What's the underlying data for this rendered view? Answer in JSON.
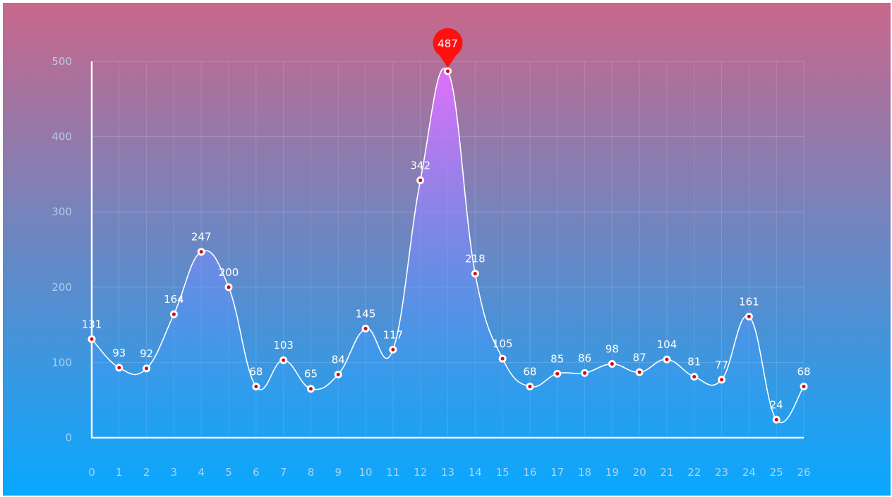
{
  "chart_data": {
    "type": "line",
    "x": [
      "0",
      "1",
      "2",
      "3",
      "4",
      "5",
      "6",
      "7",
      "8",
      "9",
      "10",
      "11",
      "12",
      "13",
      "14",
      "15",
      "16",
      "17",
      "18",
      "19",
      "20",
      "21",
      "22",
      "23",
      "24",
      "25",
      "26"
    ],
    "values": [
      131,
      93,
      92,
      164,
      247,
      200,
      68,
      103,
      65,
      84,
      145,
      117,
      342,
      487,
      218,
      105,
      68,
      85,
      86,
      98,
      87,
      104,
      81,
      77,
      161,
      24,
      68
    ],
    "y_ticks": [
      "0",
      "100",
      "200",
      "300",
      "400",
      "500"
    ],
    "ylim": [
      0,
      500
    ],
    "max_marker": {
      "index": 13,
      "label": "487"
    },
    "smooth": true,
    "area_fill": true,
    "grid": true,
    "colors": {
      "bg_top": "#c9678a",
      "bg_bottom": "#08a8ff",
      "line": "#ffffff",
      "area_top": "#e070ff",
      "area_bottom": "#15a8ff",
      "point_fill": "#ffffff",
      "point_center": "#e00000",
      "marker": "#ff1010",
      "axis": "#ffffff",
      "tick_label": "#bcd8ef"
    }
  }
}
